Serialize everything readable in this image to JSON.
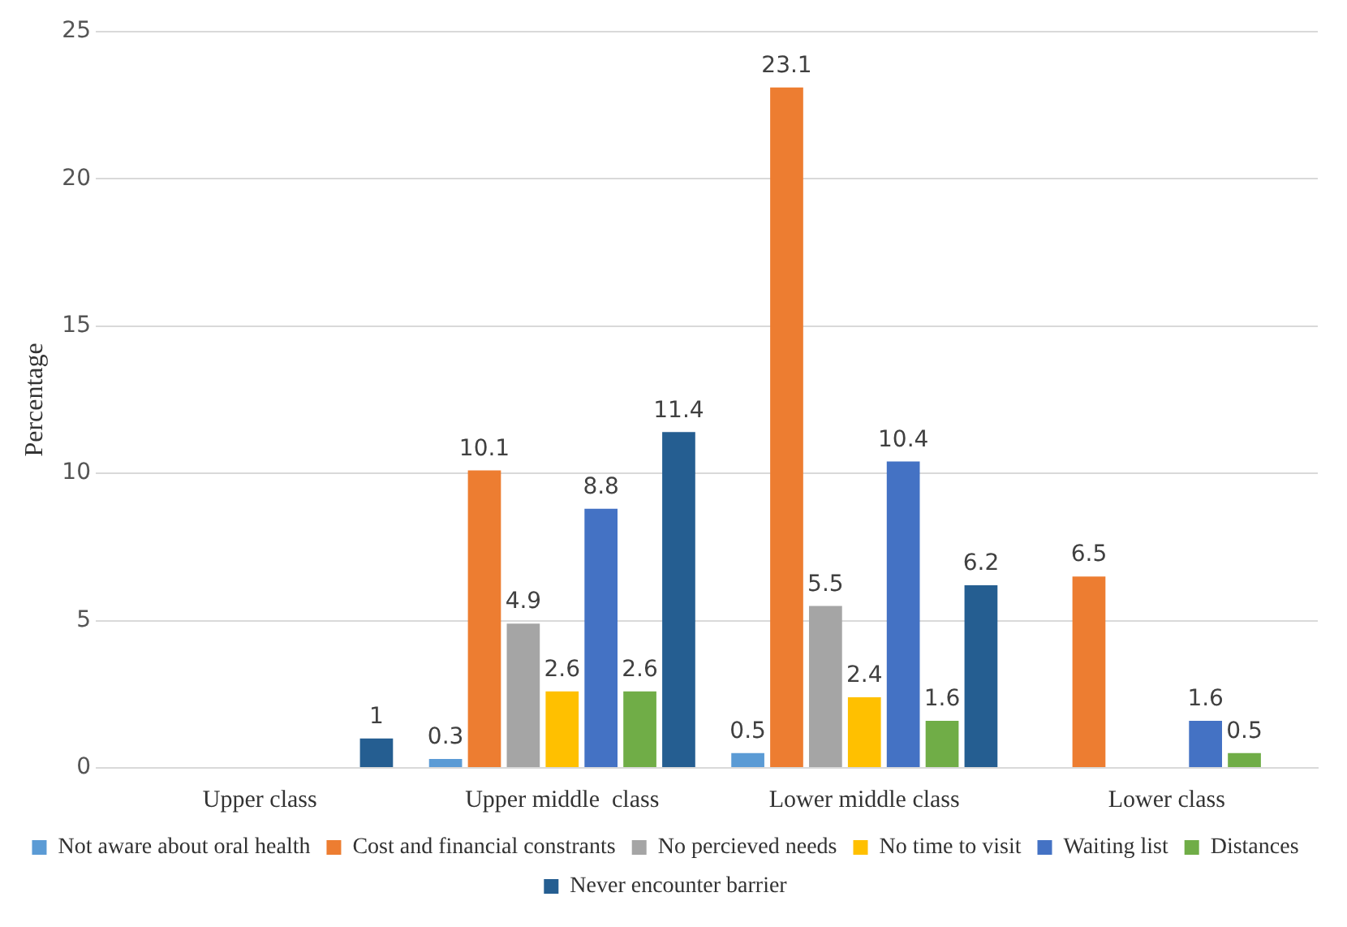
{
  "chart_data": {
    "type": "bar",
    "ylabel": "Percentage",
    "categories": [
      "Upper class",
      "Upper middle  class",
      "Lower middle class",
      "Lower class"
    ],
    "series": [
      {
        "name": "Not aware about oral health",
        "color": "#5b9bd5",
        "values": [
          null,
          0.3,
          0.5,
          null
        ]
      },
      {
        "name": "Cost and financial constrants",
        "color": "#ed7d31",
        "values": [
          null,
          10.1,
          23.1,
          6.5
        ]
      },
      {
        "name": "No percieved needs",
        "color": "#a5a5a5",
        "values": [
          null,
          4.9,
          5.5,
          null
        ]
      },
      {
        "name": "No time to visit",
        "color": "#ffc000",
        "values": [
          null,
          2.6,
          2.4,
          null
        ]
      },
      {
        "name": "Waiting list",
        "color": "#4472c4",
        "values": [
          null,
          8.8,
          10.4,
          1.6
        ]
      },
      {
        "name": "Distances",
        "color": "#70ad47",
        "values": [
          null,
          2.6,
          1.6,
          0.5
        ]
      },
      {
        "name": "Never encounter barrier",
        "color": "#255e91",
        "values": [
          1,
          11.4,
          6.2,
          null
        ]
      }
    ],
    "ylim": [
      0,
      25
    ],
    "yticks": [
      0,
      5,
      10,
      15,
      20,
      25
    ],
    "grid": "y",
    "legend": "bottom",
    "data_labels": true
  }
}
